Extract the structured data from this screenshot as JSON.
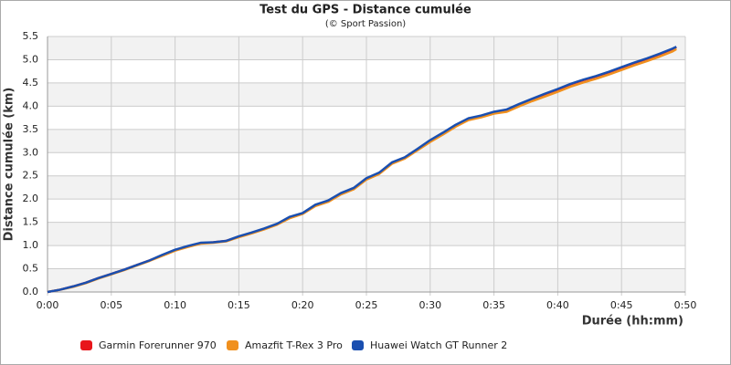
{
  "chart_data": {
    "type": "line",
    "title": "Test du GPS - Distance cumulée",
    "subtitle": "(© Sport Passion)",
    "x_label": "Durée (hh:mm)",
    "y_label": "Distance cumulée (km)",
    "x": [
      0,
      1,
      2,
      3,
      4,
      5,
      6,
      7,
      8,
      9,
      10,
      11,
      12,
      13,
      14,
      15,
      16,
      17,
      18,
      19,
      20,
      21,
      22,
      23,
      24,
      25,
      26,
      27,
      28,
      29,
      30,
      31,
      32,
      33,
      34,
      35,
      36,
      37,
      38,
      39,
      40,
      41,
      42,
      43,
      44,
      45,
      46,
      47,
      48,
      49,
      49.3
    ],
    "series": [
      {
        "name": "Garmin Forerunner 970",
        "color": "#e8161b",
        "values": [
          0,
          0.05,
          0.12,
          0.2,
          0.3,
          0.39,
          0.48,
          0.58,
          0.68,
          0.79,
          0.9,
          0.98,
          1.05,
          1.07,
          1.1,
          1.19,
          1.27,
          1.36,
          1.46,
          1.61,
          1.69,
          1.87,
          1.96,
          2.12,
          2.23,
          2.44,
          2.56,
          2.78,
          2.89,
          3.07,
          3.26,
          3.42,
          3.59,
          3.73,
          3.79,
          3.87,
          3.92,
          4.04,
          4.15,
          4.26,
          4.36,
          4.47,
          4.56,
          4.64,
          4.73,
          4.83,
          4.93,
          5.02,
          5.12,
          5.23,
          5.27
        ]
      },
      {
        "name": "Amazfit T-Rex 3 Pro",
        "color": "#f0901e",
        "values": [
          0,
          0.05,
          0.11,
          0.19,
          0.29,
          0.38,
          0.47,
          0.57,
          0.67,
          0.78,
          0.89,
          0.97,
          1.04,
          1.06,
          1.09,
          1.18,
          1.26,
          1.35,
          1.45,
          1.59,
          1.68,
          1.85,
          1.94,
          2.1,
          2.21,
          2.42,
          2.54,
          2.76,
          2.87,
          3.05,
          3.23,
          3.39,
          3.56,
          3.7,
          3.76,
          3.84,
          3.88,
          4.0,
          4.11,
          4.21,
          4.31,
          4.42,
          4.51,
          4.59,
          4.68,
          4.78,
          4.88,
          4.97,
          5.07,
          5.18,
          5.23
        ]
      },
      {
        "name": "Huawei Watch GT Runner 2",
        "color": "#1a4fb0",
        "values": [
          0,
          0.05,
          0.12,
          0.2,
          0.3,
          0.39,
          0.48,
          0.58,
          0.68,
          0.8,
          0.91,
          0.99,
          1.06,
          1.07,
          1.1,
          1.2,
          1.28,
          1.37,
          1.47,
          1.62,
          1.7,
          1.88,
          1.97,
          2.13,
          2.24,
          2.45,
          2.57,
          2.79,
          2.9,
          3.08,
          3.27,
          3.43,
          3.6,
          3.74,
          3.8,
          3.88,
          3.93,
          4.05,
          4.16,
          4.27,
          4.37,
          4.48,
          4.57,
          4.65,
          4.74,
          4.84,
          4.94,
          5.03,
          5.13,
          5.24,
          5.28
        ]
      }
    ],
    "xlim": [
      0,
      50
    ],
    "xticks": [
      {
        "value": 0,
        "label": "0:00"
      },
      {
        "value": 5,
        "label": "0:05"
      },
      {
        "value": 10,
        "label": "0:10"
      },
      {
        "value": 15,
        "label": "0:15"
      },
      {
        "value": 20,
        "label": "0:20"
      },
      {
        "value": 25,
        "label": "0:25"
      },
      {
        "value": 30,
        "label": "0:30"
      },
      {
        "value": 35,
        "label": "0:35"
      },
      {
        "value": 40,
        "label": "0:40"
      },
      {
        "value": 45,
        "label": "0:45"
      },
      {
        "value": 50,
        "label": "0:50"
      }
    ],
    "ylim": [
      0,
      5.5
    ],
    "yticks": [
      {
        "value": 0,
        "label": "0.0"
      },
      0.5,
      {
        "value": 1,
        "label": "1.0"
      },
      1.5,
      {
        "value": 2,
        "label": "2.0"
      },
      2.5,
      {
        "value": 3,
        "label": "3.0"
      },
      3.5,
      {
        "value": 4,
        "label": "4.0"
      },
      4.5,
      {
        "value": 5,
        "label": "5.0"
      },
      5.5
    ],
    "grid": true,
    "legend": "bottom"
  }
}
